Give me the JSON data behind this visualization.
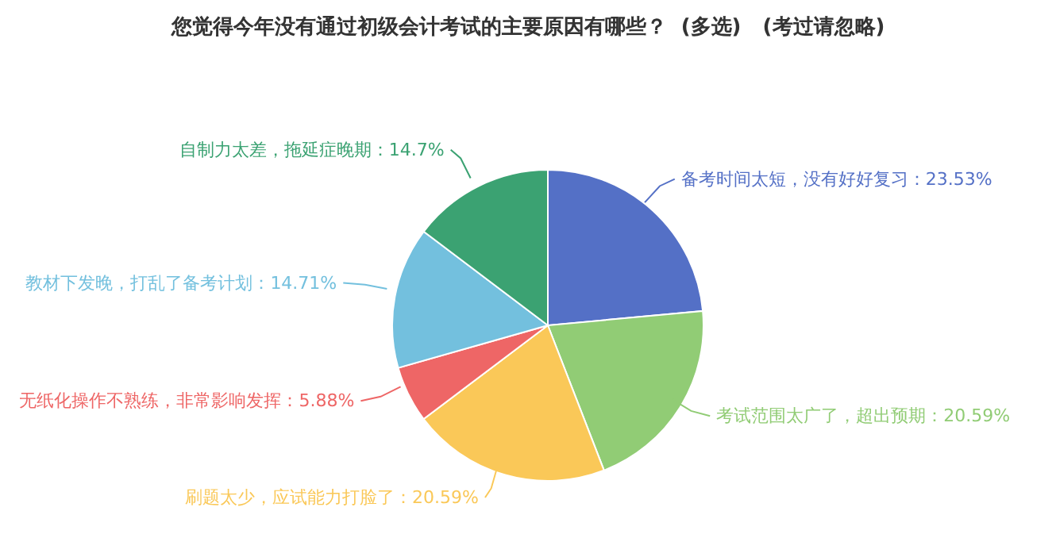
{
  "chart_data": {
    "type": "pie",
    "title": "您觉得今年没有通过初级会计考试的主要原因有哪些？  (多选)   (考过请忽略)",
    "categories": [
      "备考时间太短，没有好好复习",
      "考试范围太广了，超出预期",
      "刷题太少，应试能力打脸了",
      "无纸化操作不熟练，非常影响发挥",
      "教材下发晚，打乱了备考计划",
      "自制力太差，拖延症晚期"
    ],
    "values": [
      23.53,
      20.59,
      20.59,
      5.88,
      14.71,
      14.7
    ],
    "value_labels": [
      "：23.53%",
      "：20.59%",
      "：20.59%",
      "：5.88%",
      "：14.71%",
      "：14.7%"
    ],
    "colors": [
      "#5470c6",
      "#91cc75",
      "#fac858",
      "#ee6666",
      "#73c0de",
      "#3ba272"
    ],
    "legend": false
  }
}
